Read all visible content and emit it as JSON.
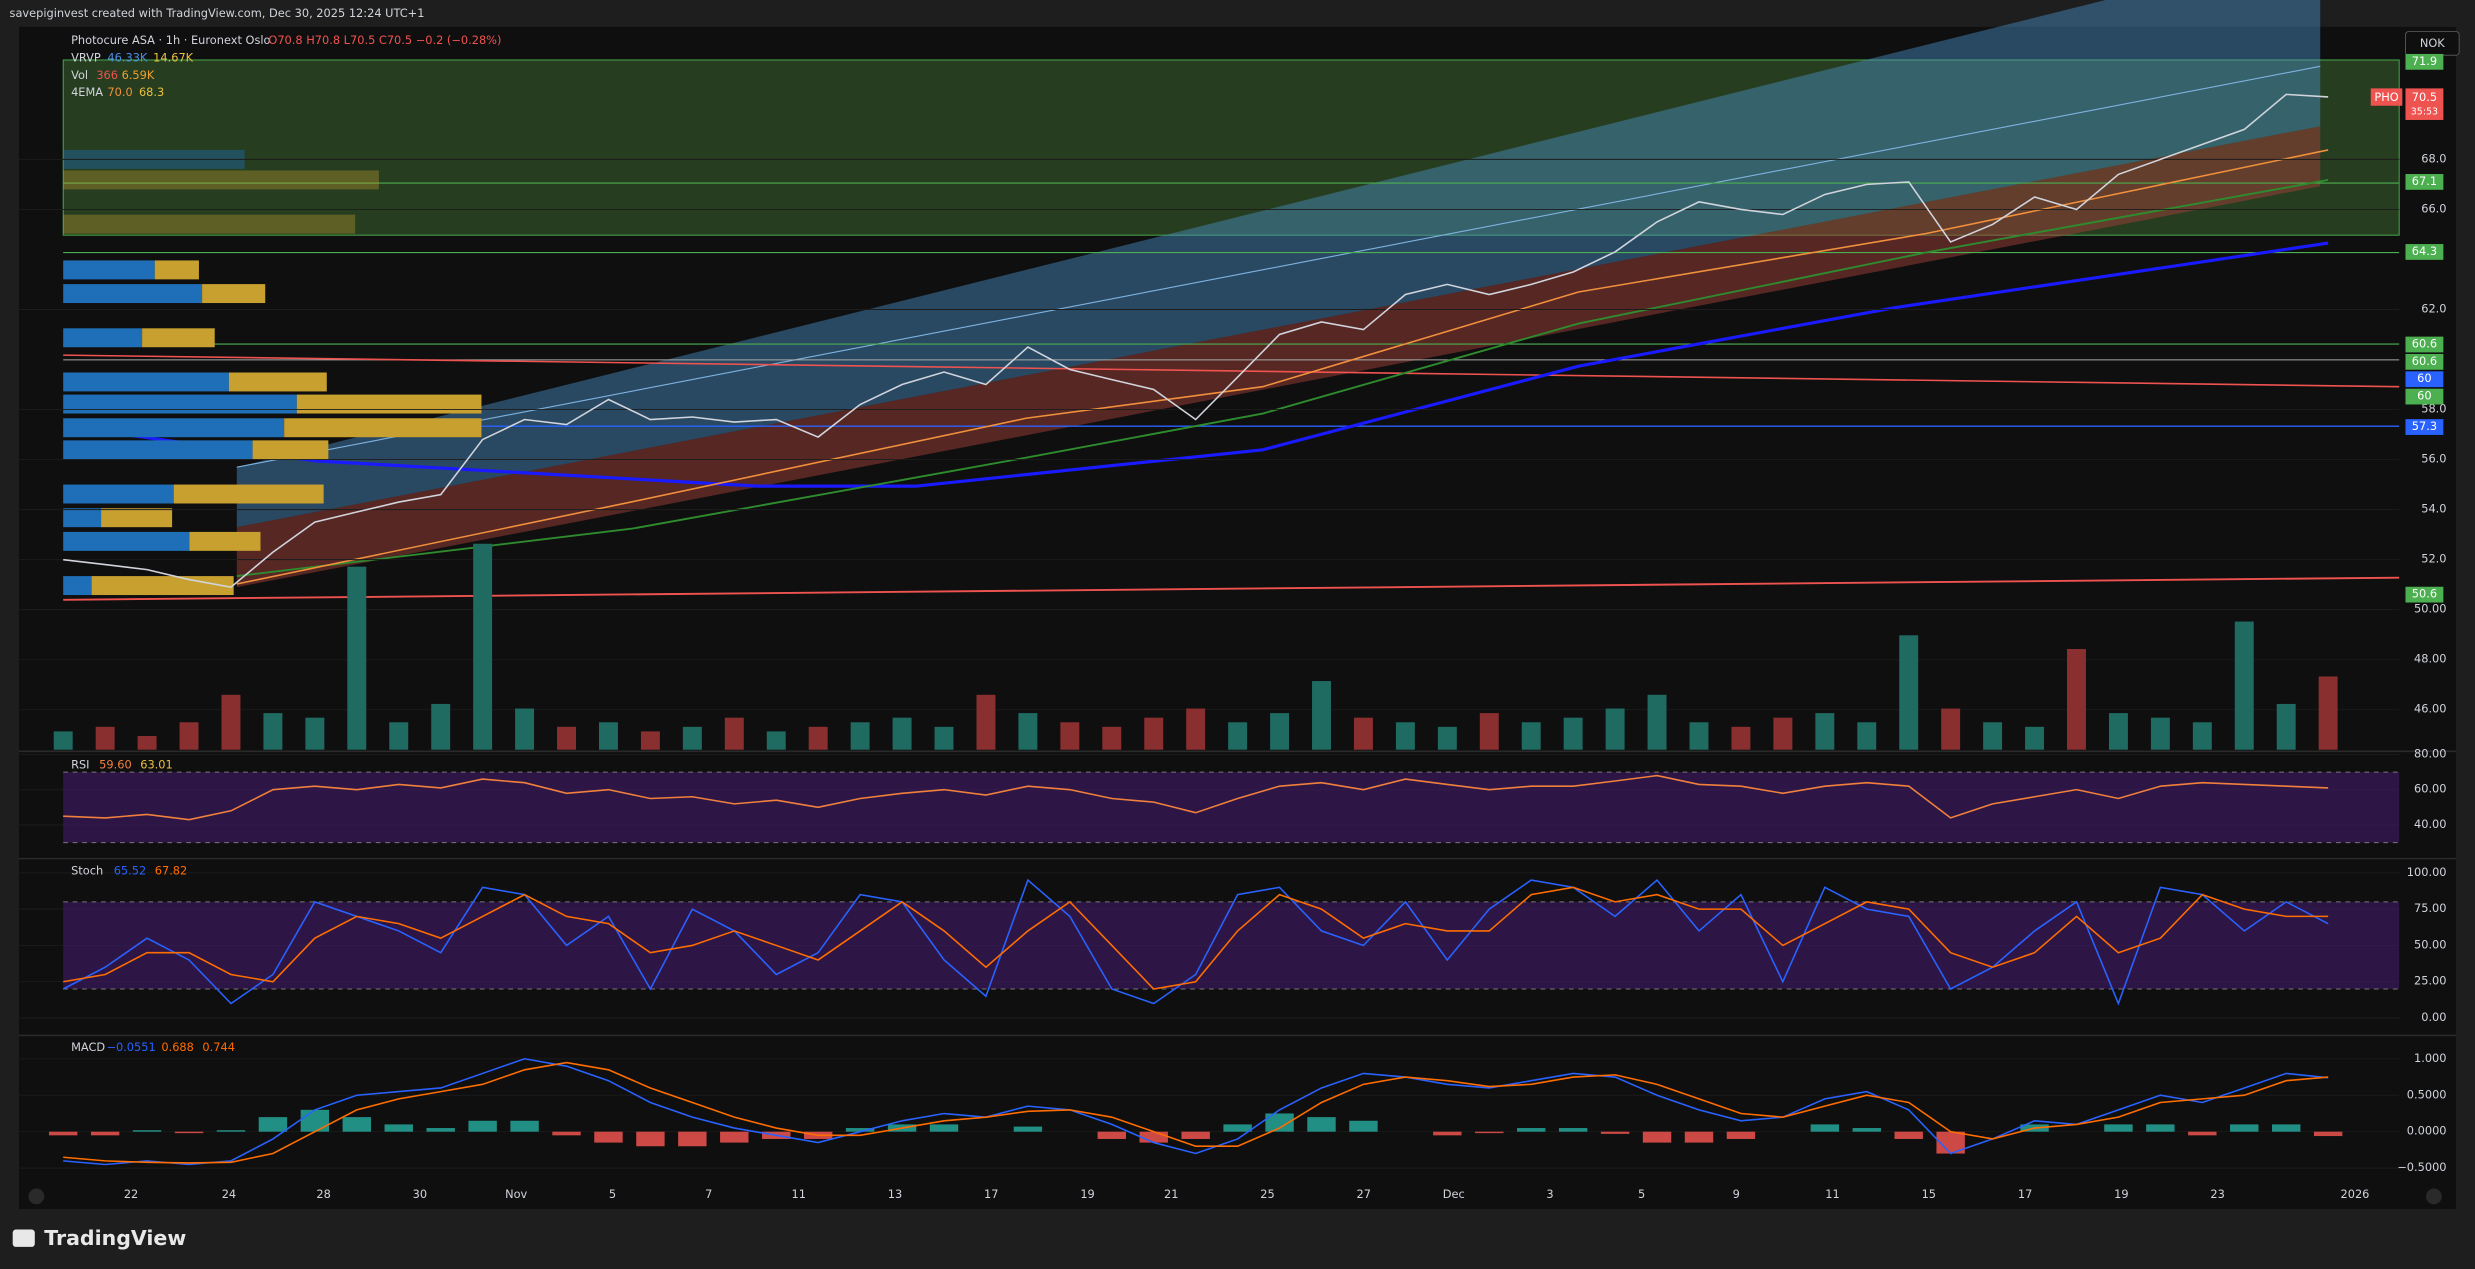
{
  "header": {
    "credit": "savepiginvest created with TradingView.com, Dec 30, 2025 12:24 UTC+1",
    "currency": "NOK"
  },
  "legend": {
    "symbol": "Photocure ASA · 1h · Euronext Oslo",
    "ohlc": "O70.8 H70.8 L70.5 C70.5 −0.2 (−0.28%)",
    "vrvp": {
      "name": "VRVP",
      "values": [
        "46.33K",
        "14.67K"
      ]
    },
    "vol": {
      "name": "Vol",
      "values": [
        "366",
        "6.59K"
      ]
    },
    "ema": {
      "name": "4EMA",
      "values": [
        "70.0",
        "68.3"
      ]
    }
  },
  "price_tags": [
    {
      "value": 71.9,
      "color": "#4caf50"
    },
    {
      "value": 67.1,
      "color": "#4caf50"
    },
    {
      "value": 64.3,
      "color": "#4caf50"
    },
    {
      "value": 60.6,
      "color": "#4caf50"
    },
    {
      "value": 60.6,
      "color": "#4caf50"
    },
    {
      "value": 60.0,
      "color": "#2962ff"
    },
    {
      "value": 60.0,
      "color": "#4caf50"
    },
    {
      "value": 57.3,
      "color": "#2962ff"
    },
    {
      "value": 50.6,
      "color": "#4caf50"
    }
  ],
  "symbol_tag": {
    "text": "PHO",
    "price": 70.5,
    "countdown": "35:53"
  },
  "time_axis": {
    "labels": [
      "22",
      "24",
      "28",
      "30",
      "Nov",
      "5",
      "7",
      "11",
      "13",
      "17",
      "19",
      "21",
      "25",
      "27",
      "Dec",
      "3",
      "5",
      "9",
      "11",
      "15",
      "17",
      "19",
      "23",
      "2026"
    ]
  },
  "footer": {
    "brand": "TradingView"
  },
  "chart_data": [
    {
      "type": "line",
      "color": "#d1d4dc",
      "ylim": [
        44.4,
        73.3
      ],
      "yticks": [
        {
          "value": 46,
          "label": "46.00"
        },
        {
          "value": 48,
          "label": "48.00"
        },
        {
          "value": 50,
          "label": "50.00"
        },
        {
          "value": 52,
          "label": "52.0"
        },
        {
          "value": 54,
          "label": "54.0"
        },
        {
          "value": 56,
          "label": "56.0"
        },
        {
          "value": 58,
          "label": "58.0"
        },
        {
          "value": 62,
          "label": "62.0"
        },
        {
          "value": 66,
          "label": "66.0"
        },
        {
          "value": 68,
          "label": "68.0"
        }
      ],
      "values": [
        52.0,
        51.8,
        51.6,
        51.2,
        50.9,
        52.3,
        53.5,
        53.9,
        54.3,
        54.6,
        56.8,
        57.6,
        57.4,
        58.4,
        57.6,
        57.7,
        57.5,
        57.6,
        56.9,
        58.2,
        59.0,
        59.5,
        59.0,
        60.5,
        59.6,
        59.2,
        58.8,
        57.6,
        59.3,
        61.0,
        61.5,
        61.2,
        62.6,
        63.0,
        62.6,
        63.0,
        63.5,
        64.3,
        65.5,
        66.3,
        66.0,
        65.8,
        66.6,
        67.0,
        67.1,
        64.7,
        65.4,
        66.5,
        66.0,
        67.4,
        68.0,
        68.6,
        69.2,
        70.6,
        70.5
      ]
    },
    {
      "type": "bar",
      "colors": [
        "#1f6b62",
        "#8a2f2f"
      ],
      "values": [
        4,
        5,
        3,
        6,
        12,
        8,
        7,
        40,
        6,
        10,
        45,
        9,
        5,
        6,
        4,
        5,
        7,
        4,
        5,
        6,
        7,
        5,
        12,
        8,
        6,
        5,
        7,
        9,
        6,
        8,
        15,
        7,
        6,
        5,
        8,
        6,
        7,
        9,
        12,
        6,
        5,
        7,
        8,
        6,
        25,
        9,
        6,
        5,
        22,
        8,
        7,
        6,
        28,
        10,
        16
      ]
    },
    {
      "type": "line",
      "title": "RSI",
      "legend_values": [
        "59.60",
        "63.01"
      ],
      "band": [
        30,
        70
      ],
      "ylim": [
        22.7,
        80.9
      ],
      "yticks": [
        {
          "value": 40,
          "label": "40.00"
        },
        {
          "value": 60,
          "label": "60.00"
        },
        {
          "value": 80,
          "label": "80.00"
        }
      ],
      "series": [
        {
          "color": "#f0803c",
          "values": [
            45,
            44,
            46,
            43,
            48,
            60,
            62,
            60,
            63,
            61,
            66,
            64,
            58,
            60,
            55,
            56,
            52,
            54,
            50,
            55,
            58,
            60,
            57,
            62,
            60,
            55,
            53,
            47,
            55,
            62,
            64,
            60,
            66,
            63,
            60,
            62,
            62,
            65,
            68,
            63,
            62,
            58,
            62,
            64,
            62,
            44,
            52,
            56,
            60,
            55,
            62,
            64,
            63,
            62,
            61
          ]
        }
      ]
    },
    {
      "type": "line",
      "title": "Stoch",
      "legend_values": [
        "65.52",
        "67.82"
      ],
      "band": [
        20,
        80
      ],
      "ylim": [
        -10.9,
        108.7
      ],
      "yticks": [
        {
          "value": 0,
          "label": "0.00"
        },
        {
          "value": 25,
          "label": "25.00"
        },
        {
          "value": 50,
          "label": "50.00"
        },
        {
          "value": 75,
          "label": "75.00"
        },
        {
          "value": 100,
          "label": "100.00"
        }
      ],
      "series": [
        {
          "color": "#2962ff",
          "values": [
            20,
            35,
            55,
            40,
            10,
            30,
            80,
            70,
            60,
            45,
            90,
            85,
            50,
            70,
            20,
            75,
            60,
            30,
            45,
            85,
            80,
            40,
            15,
            95,
            70,
            20,
            10,
            30,
            85,
            90,
            60,
            50,
            80,
            40,
            75,
            95,
            90,
            70,
            95,
            60,
            85,
            25,
            90,
            75,
            70,
            20,
            35,
            60,
            80,
            10,
            90,
            85,
            60,
            80,
            65
          ]
        },
        {
          "color": "#ff6d00",
          "values": [
            25,
            30,
            45,
            45,
            30,
            25,
            55,
            70,
            65,
            55,
            70,
            85,
            70,
            65,
            45,
            50,
            60,
            50,
            40,
            60,
            80,
            60,
            35,
            60,
            80,
            50,
            20,
            25,
            60,
            85,
            75,
            55,
            65,
            60,
            60,
            85,
            90,
            80,
            85,
            75,
            75,
            50,
            65,
            80,
            75,
            45,
            35,
            45,
            70,
            45,
            55,
            85,
            75,
            70,
            70
          ]
        }
      ]
    },
    {
      "type": "line",
      "title": "MACD",
      "legend_values": [
        "−0.0551",
        "0.688",
        "0.744"
      ],
      "ylim": [
        -1.04,
        1.3
      ],
      "yticks": [
        {
          "value": -0.5,
          "label": "−0.5000"
        },
        {
          "value": 0,
          "label": "0.0000"
        },
        {
          "value": 0.5,
          "label": "0.5000"
        },
        {
          "value": 1,
          "label": "1.000"
        }
      ],
      "histogram": {
        "colors": [
          "#26a69a",
          "#ef5350"
        ],
        "values": [
          -0.05,
          -0.05,
          0.02,
          -0.02,
          0.02,
          0.2,
          0.3,
          0.2,
          0.1,
          0.05,
          0.15,
          0.15,
          -0.05,
          -0.15,
          -0.2,
          -0.2,
          -0.15,
          -0.1,
          -0.1,
          0.05,
          0.1,
          0.1,
          0.0,
          0.07,
          0.0,
          -0.1,
          -0.15,
          -0.1,
          0.1,
          0.25,
          0.2,
          0.15,
          0.0,
          -0.05,
          -0.02,
          0.05,
          0.05,
          -0.03,
          -0.15,
          -0.15,
          -0.1,
          0.0,
          0.1,
          0.05,
          -0.1,
          -0.3,
          0.0,
          0.1,
          0.0,
          0.1,
          0.1,
          -0.05,
          0.1,
          0.1,
          -0.06
        ]
      },
      "series": [
        {
          "color": "#2962ff",
          "values": [
            -0.4,
            -0.45,
            -0.4,
            -0.45,
            -0.4,
            -0.1,
            0.3,
            0.5,
            0.55,
            0.6,
            0.8,
            1.0,
            0.9,
            0.7,
            0.4,
            0.2,
            0.05,
            -0.05,
            -0.15,
            0.0,
            0.15,
            0.25,
            0.2,
            0.35,
            0.3,
            0.1,
            -0.15,
            -0.3,
            -0.1,
            0.3,
            0.6,
            0.8,
            0.75,
            0.65,
            0.6,
            0.7,
            0.8,
            0.75,
            0.5,
            0.3,
            0.15,
            0.2,
            0.45,
            0.55,
            0.3,
            -0.3,
            -0.1,
            0.15,
            0.1,
            0.3,
            0.5,
            0.4,
            0.6,
            0.8,
            0.74
          ]
        },
        {
          "color": "#ff6d00",
          "values": [
            -0.35,
            -0.4,
            -0.42,
            -0.43,
            -0.42,
            -0.3,
            0.0,
            0.3,
            0.45,
            0.55,
            0.65,
            0.85,
            0.95,
            0.85,
            0.6,
            0.4,
            0.2,
            0.05,
            -0.05,
            -0.05,
            0.05,
            0.15,
            0.2,
            0.28,
            0.3,
            0.2,
            0.0,
            -0.2,
            -0.2,
            0.05,
            0.4,
            0.65,
            0.75,
            0.7,
            0.62,
            0.65,
            0.75,
            0.78,
            0.65,
            0.45,
            0.25,
            0.2,
            0.35,
            0.5,
            0.4,
            0.0,
            -0.1,
            0.05,
            0.1,
            0.2,
            0.4,
            0.45,
            0.5,
            0.7,
            0.75
          ]
        }
      ]
    }
  ]
}
